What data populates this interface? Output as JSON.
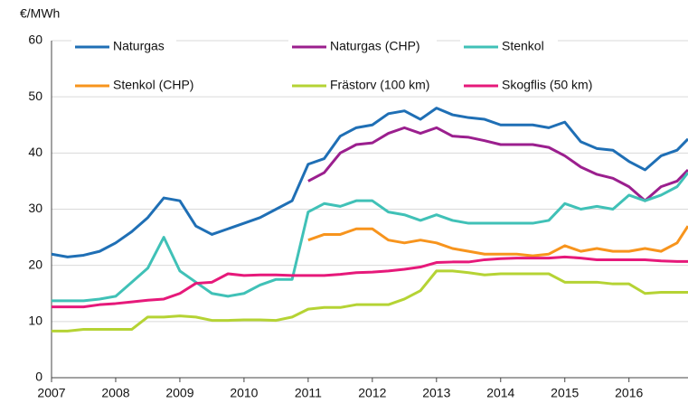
{
  "chart_data": {
    "type": "line",
    "y_label": "€/MWh",
    "x": [
      2007,
      2007.25,
      2007.5,
      2007.75,
      2008,
      2008.25,
      2008.5,
      2008.75,
      2009,
      2009.25,
      2009.5,
      2009.75,
      2010,
      2010.25,
      2010.5,
      2010.75,
      2011,
      2011.25,
      2011.5,
      2011.75,
      2012,
      2012.25,
      2012.5,
      2012.75,
      2013,
      2013.25,
      2013.5,
      2013.75,
      2014,
      2014.25,
      2014.5,
      2014.75,
      2015,
      2015.25,
      2015.5,
      2015.75,
      2016,
      2016.25,
      2016.5,
      2016.75,
      2016.92
    ],
    "series": [
      {
        "name": "Naturgas",
        "color": "#1f6fb5",
        "values": [
          22,
          21.5,
          21.8,
          22.5,
          24,
          26,
          28.5,
          32,
          31.5,
          27,
          25.5,
          26.5,
          27.5,
          28.5,
          30,
          31.5,
          38,
          39,
          43,
          44.5,
          45,
          47,
          47.5,
          46,
          48,
          46.8,
          46.3,
          46,
          45,
          45,
          45,
          44.5,
          45.5,
          42,
          40.8,
          40.5,
          38.5,
          37,
          39.5,
          40.5,
          42.5
        ]
      },
      {
        "name": "Naturgas (CHP)",
        "color": "#9b1f8e",
        "values": [
          null,
          null,
          null,
          null,
          null,
          null,
          null,
          null,
          null,
          null,
          null,
          null,
          null,
          null,
          null,
          null,
          35,
          36.5,
          40,
          41.5,
          41.8,
          43.5,
          44.5,
          43.5,
          44.5,
          43,
          42.8,
          42.2,
          41.5,
          41.5,
          41.5,
          41,
          39.5,
          37.5,
          36.2,
          35.5,
          34,
          31.5,
          34,
          35,
          37
        ]
      },
      {
        "name": "Stenkol",
        "color": "#40c1b7",
        "values": [
          13.7,
          13.7,
          13.7,
          14,
          14.5,
          17,
          19.5,
          25,
          19,
          17,
          15,
          14.5,
          15,
          16.5,
          17.5,
          17.5,
          29.5,
          31,
          30.5,
          31.5,
          31.5,
          29.5,
          29,
          28,
          29,
          28,
          27.5,
          27.5,
          27.5,
          27.5,
          27.5,
          28,
          31,
          30,
          30.5,
          30,
          32.5,
          31.5,
          32.5,
          34,
          36.5
        ]
      },
      {
        "name": "Stenkol (CHP)",
        "color": "#f7941d",
        "values": [
          null,
          null,
          null,
          null,
          null,
          null,
          null,
          null,
          null,
          null,
          null,
          null,
          null,
          null,
          null,
          null,
          24.5,
          25.5,
          25.5,
          26.5,
          26.5,
          24.5,
          24,
          24.5,
          24,
          23,
          22.5,
          22,
          22,
          22,
          21.7,
          22,
          23.5,
          22.5,
          23,
          22.5,
          22.5,
          23,
          22.5,
          24,
          27
        ]
      },
      {
        "name": "Frästorv (100 km)",
        "color": "#b5d334",
        "values": [
          8.3,
          8.3,
          8.6,
          8.6,
          8.6,
          8.6,
          10.8,
          10.8,
          11,
          10.8,
          10.2,
          10.2,
          10.3,
          10.3,
          10.2,
          10.8,
          12.2,
          12.5,
          12.5,
          13,
          13,
          13,
          14,
          15.5,
          19,
          19,
          18.7,
          18.3,
          18.5,
          18.5,
          18.5,
          18.5,
          17,
          17,
          17,
          16.7,
          16.7,
          15,
          15.2,
          15.2,
          15.2
        ]
      },
      {
        "name": "Skogflis (50 km)",
        "color": "#e6197a",
        "values": [
          12.6,
          12.6,
          12.6,
          13,
          13.2,
          13.5,
          13.8,
          14,
          15,
          16.8,
          17,
          18.5,
          18.2,
          18.3,
          18.3,
          18.2,
          18.2,
          18.2,
          18.4,
          18.7,
          18.8,
          19,
          19.3,
          19.7,
          20.5,
          20.6,
          20.6,
          21,
          21.2,
          21.3,
          21.3,
          21.3,
          21.5,
          21.3,
          21,
          21,
          21,
          21,
          20.8,
          20.7,
          20.7
        ]
      }
    ],
    "xlim": [
      2007,
      2016.92
    ],
    "xticks": [
      2007,
      2008,
      2009,
      2010,
      2011,
      2012,
      2013,
      2014,
      2015,
      2016
    ],
    "ylim": [
      0,
      60
    ],
    "yticks": [
      0,
      10,
      20,
      30,
      40,
      50,
      60
    ],
    "grid": true
  }
}
